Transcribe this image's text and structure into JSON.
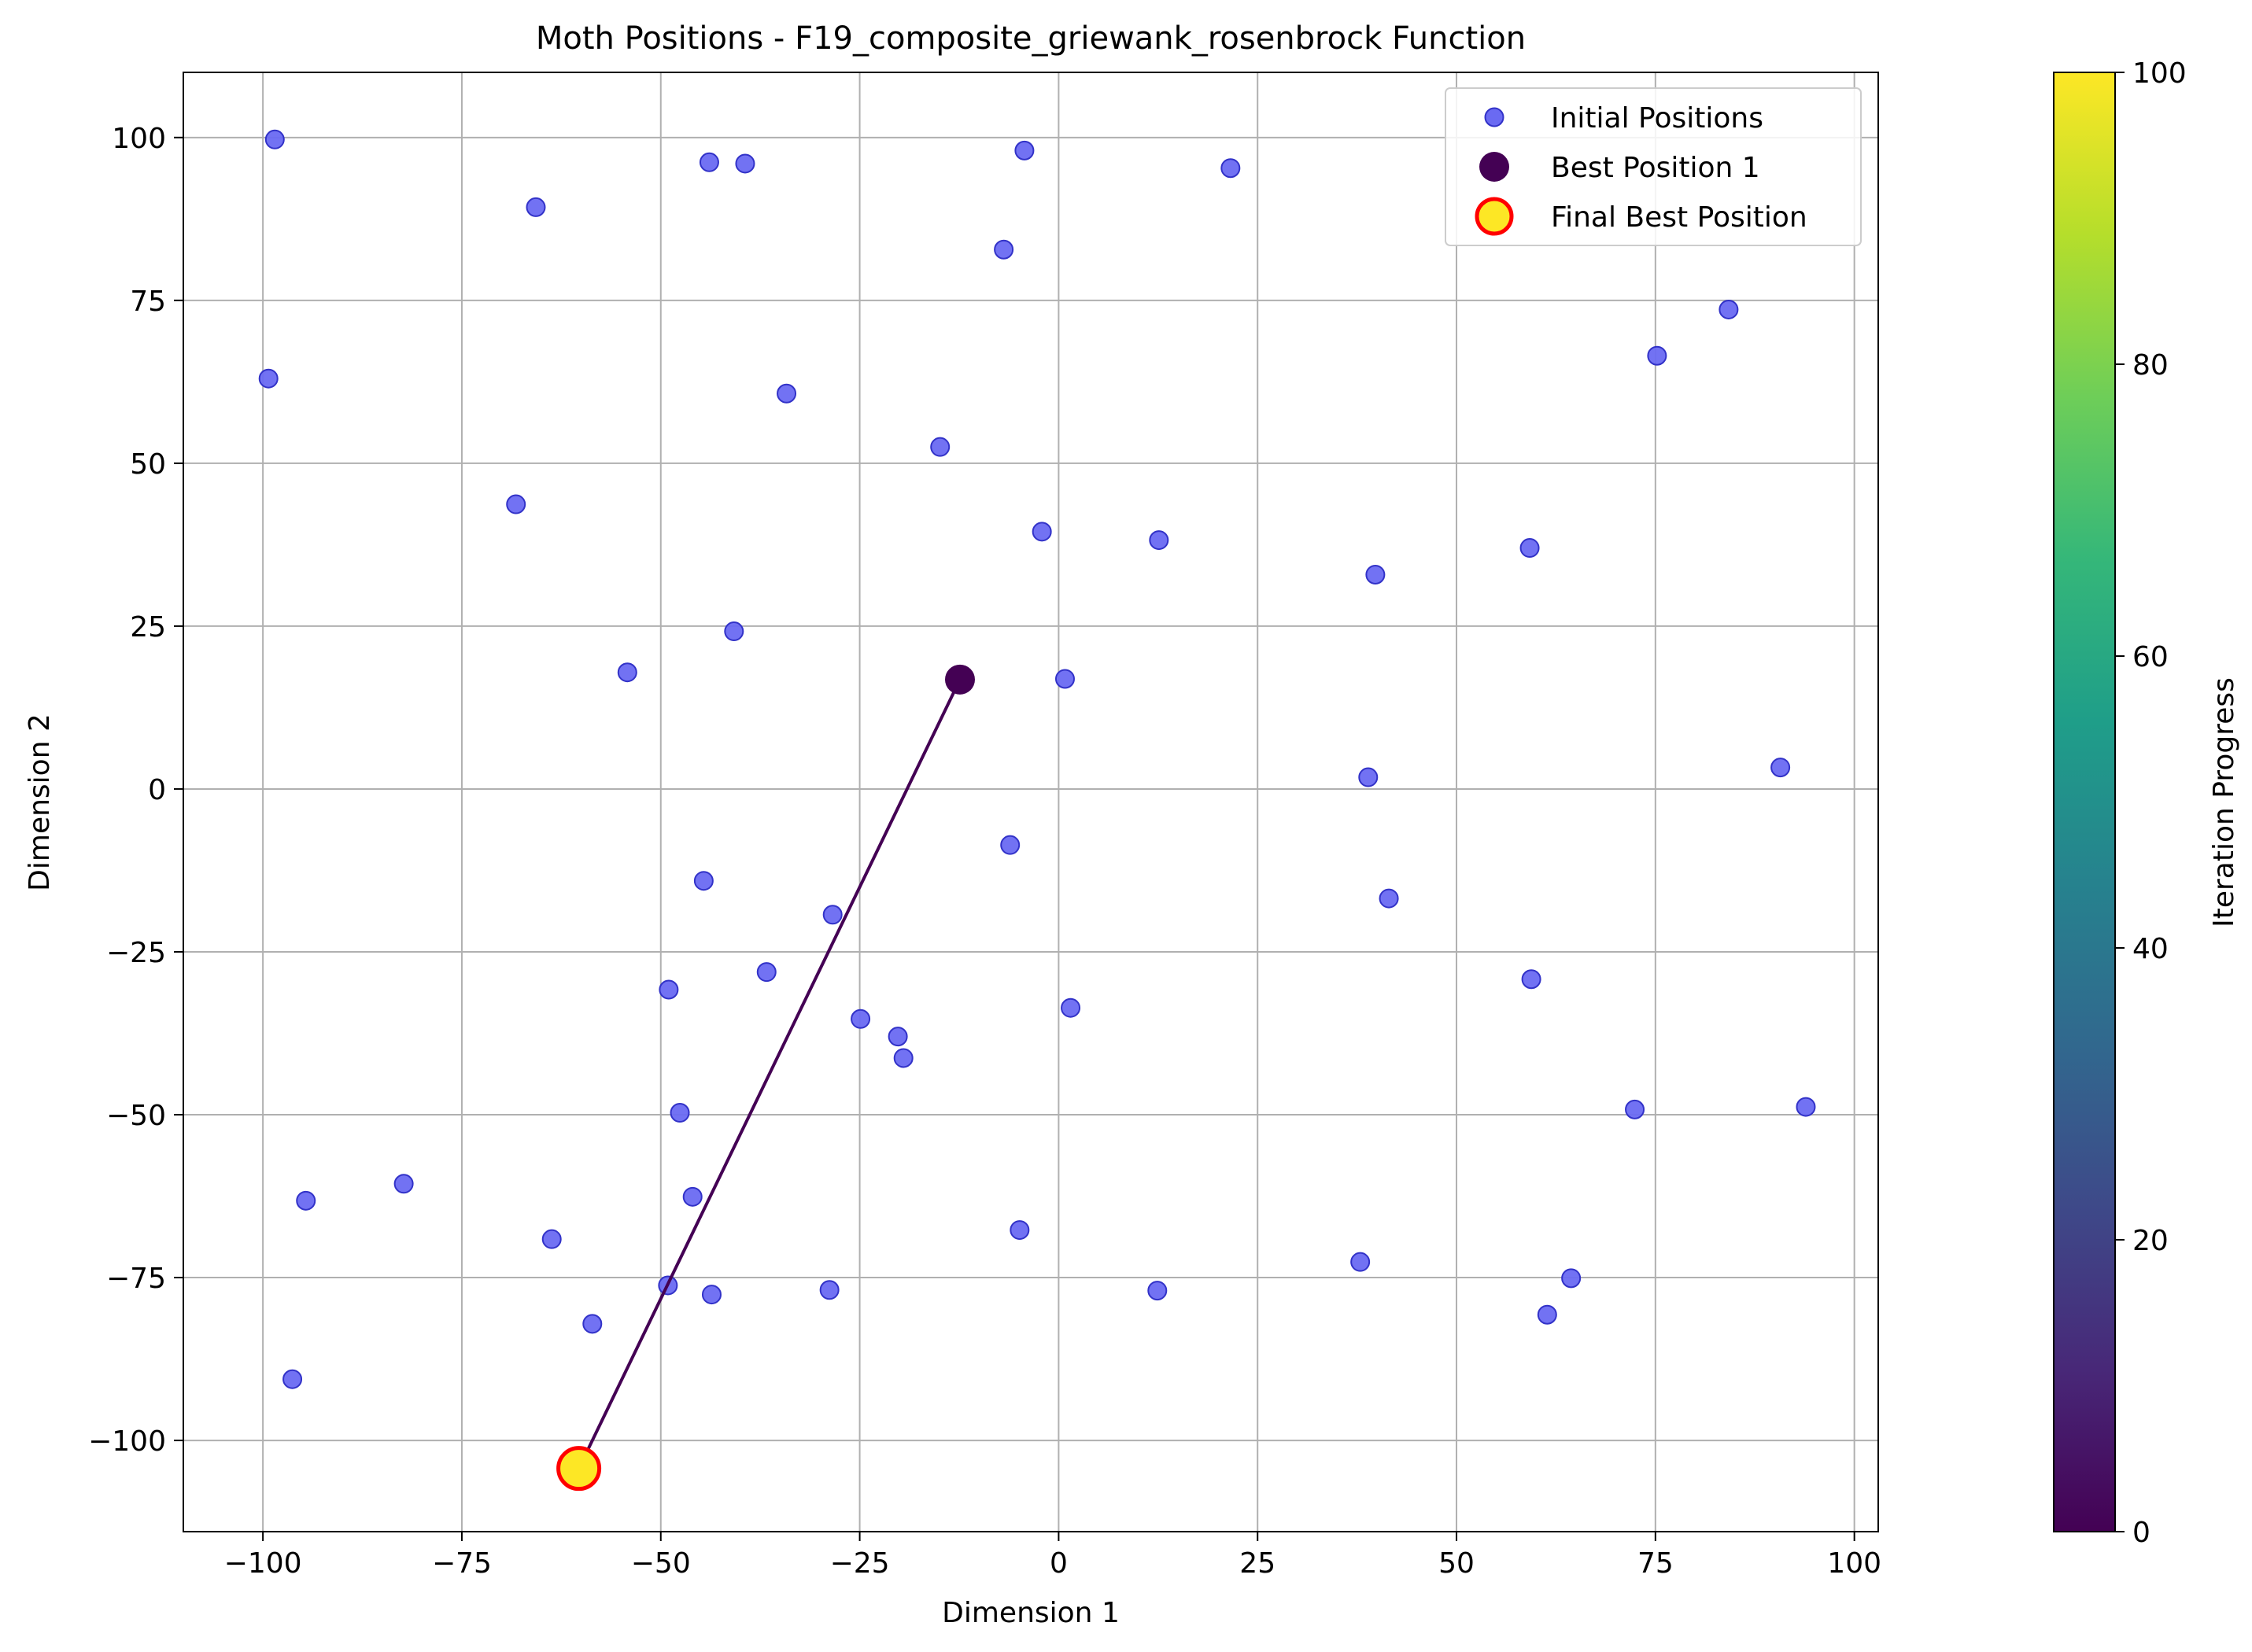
{
  "chart_data": {
    "type": "scatter",
    "title": "Moth Positions - F19_composite_griewank_rosenbrock Function",
    "xlabel": "Dimension 1",
    "ylabel": "Dimension 2",
    "xlim": [
      -110,
      103
    ],
    "ylim": [
      -114,
      110
    ],
    "xticks": [
      -100,
      -75,
      -50,
      -25,
      0,
      25,
      50,
      75,
      100
    ],
    "yticks": [
      -100,
      -75,
      -50,
      -25,
      0,
      25,
      50,
      75,
      100
    ],
    "xtick_labels": [
      "−100",
      "−75",
      "−50",
      "−25",
      "0",
      "25",
      "50",
      "75",
      "100"
    ],
    "ytick_labels": [
      "−100",
      "−75",
      "−50",
      "−25",
      "0",
      "25",
      "50",
      "75",
      "100"
    ],
    "grid": true,
    "legend_position": "top-right",
    "series": [
      {
        "name": "Initial Positions",
        "color": "#6a6af2",
        "edge_color": "#3232c8",
        "points": [
          [
            -98.5,
            99.7
          ],
          [
            -43.9,
            96.2
          ],
          [
            -39.4,
            96.0
          ],
          [
            -4.3,
            98.0
          ],
          [
            21.6,
            95.3
          ],
          [
            -65.7,
            89.3
          ],
          [
            -6.9,
            82.8
          ],
          [
            84.2,
            73.6
          ],
          [
            75.2,
            66.5
          ],
          [
            -99.3,
            63.0
          ],
          [
            -34.2,
            60.7
          ],
          [
            -14.9,
            52.5
          ],
          [
            -68.2,
            43.7
          ],
          [
            -2.1,
            39.5
          ],
          [
            12.6,
            38.2
          ],
          [
            59.2,
            37.0
          ],
          [
            39.8,
            32.9
          ],
          [
            -40.8,
            24.2
          ],
          [
            -54.2,
            17.9
          ],
          [
            0.8,
            16.9
          ],
          [
            38.9,
            1.8
          ],
          [
            90.7,
            3.3
          ],
          [
            -6.1,
            -8.6
          ],
          [
            -44.6,
            -14.1
          ],
          [
            41.5,
            -16.8
          ],
          [
            -28.4,
            -19.3
          ],
          [
            -36.7,
            -28.1
          ],
          [
            59.4,
            -29.2
          ],
          [
            -49.0,
            -30.8
          ],
          [
            1.5,
            -33.6
          ],
          [
            -24.9,
            -35.3
          ],
          [
            -20.2,
            -38.0
          ],
          [
            -19.5,
            -41.3
          ],
          [
            -47.6,
            -49.7
          ],
          [
            72.4,
            -49.2
          ],
          [
            93.9,
            -48.8
          ],
          [
            -94.6,
            -63.2
          ],
          [
            -82.3,
            -60.6
          ],
          [
            -46.0,
            -62.6
          ],
          [
            -4.9,
            -67.7
          ],
          [
            -63.7,
            -69.1
          ],
          [
            37.9,
            -72.6
          ],
          [
            64.4,
            -75.1
          ],
          [
            -49.1,
            -76.2
          ],
          [
            -28.8,
            -76.9
          ],
          [
            12.4,
            -77.0
          ],
          [
            -43.6,
            -77.6
          ],
          [
            -58.6,
            -82.1
          ],
          [
            61.4,
            -80.7
          ],
          [
            -96.3,
            -90.6
          ]
        ]
      },
      {
        "name": "Best Position 1",
        "color": "#440154",
        "points": [
          [
            -12.4,
            16.8
          ]
        ]
      },
      {
        "name": "Final Best Position",
        "color": "#fde725",
        "edge_color": "#ff0000",
        "points": [
          [
            -60.3,
            -104.3
          ]
        ]
      }
    ],
    "arrow": {
      "from": [
        -12.4,
        16.8
      ],
      "to": [
        -60.3,
        -104.3
      ],
      "color": "#440154"
    },
    "colorbar": {
      "label": "Iteration Progress",
      "colormap": "viridis",
      "range": [
        0,
        100
      ],
      "ticks": [
        0,
        20,
        40,
        60,
        80,
        100
      ],
      "tick_labels": [
        "0",
        "20",
        "40",
        "60",
        "80",
        "100"
      ],
      "colors": [
        "#440154",
        "#482878",
        "#3e4989",
        "#31688e",
        "#26828e",
        "#1f9e89",
        "#35b779",
        "#6ece58",
        "#b5de2b",
        "#fde725"
      ]
    }
  }
}
